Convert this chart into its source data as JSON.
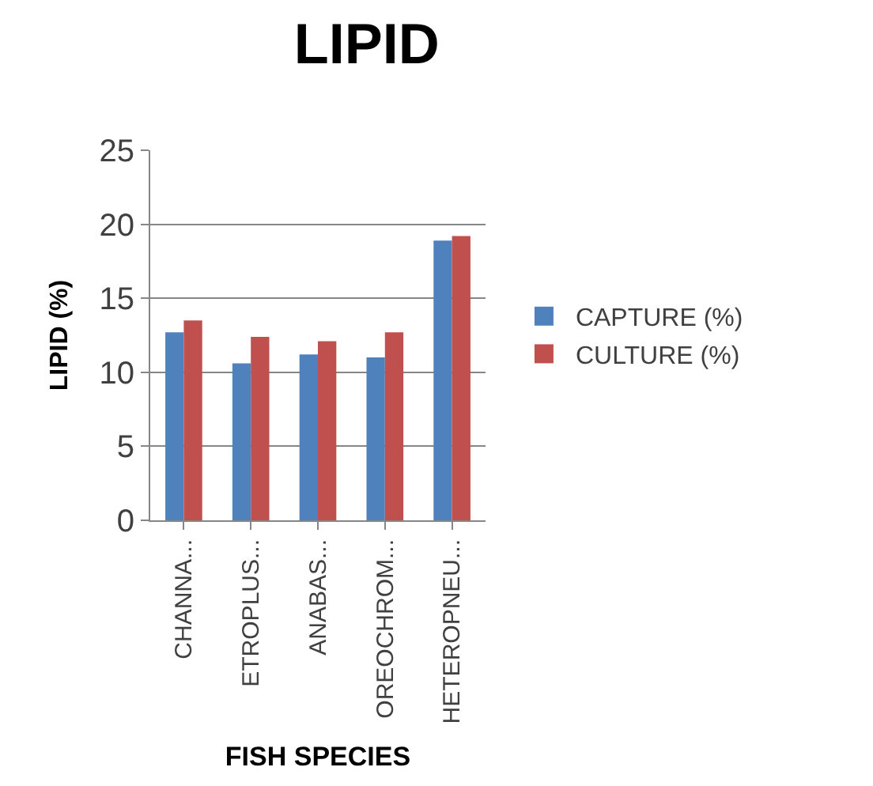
{
  "chart_data": {
    "type": "bar",
    "title": "LIPID",
    "xlabel": "FISH SPECIES",
    "ylabel": "LIPID (%)",
    "categories": [
      "CHANNA...",
      "ETROPLUS...",
      "ANABAS...",
      "OREOCHROM...",
      "HETEROPNEU..."
    ],
    "series": [
      {
        "name": "CAPTURE (%)",
        "color": "#4f81bd",
        "values": [
          12.7,
          10.6,
          11.2,
          11.0,
          18.9
        ]
      },
      {
        "name": "CULTURE (%)",
        "color": "#c0504d",
        "values": [
          13.5,
          12.4,
          12.1,
          12.7,
          19.2
        ]
      }
    ],
    "ylim": [
      0,
      25
    ],
    "yticks": [
      0,
      5,
      10,
      15,
      20,
      25
    ],
    "grid": "y",
    "legend": "right"
  }
}
